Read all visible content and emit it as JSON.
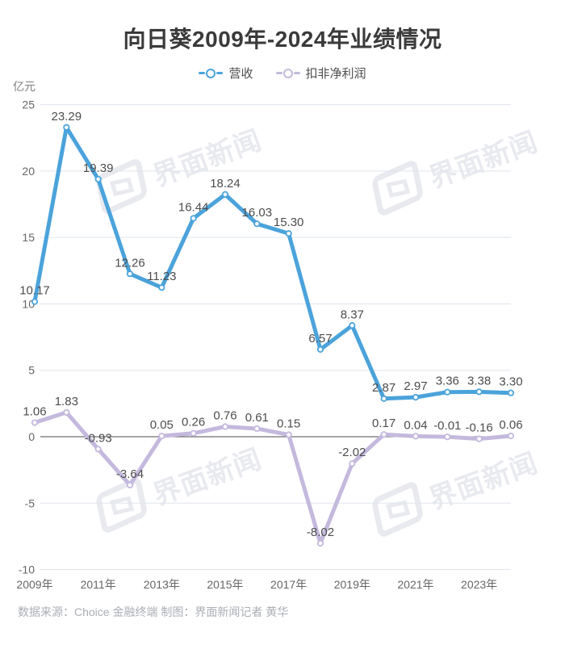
{
  "page": {
    "title": "向日葵2009年-2024年业绩情况",
    "source_note": "数据来源：Choice 金融终端 制图：界面新闻记者 黄华",
    "watermark": "界面新闻"
  },
  "chart_data": {
    "type": "line",
    "title": "向日葵2009年-2024年业绩情况",
    "unit_label": "亿元",
    "legend_position": "top",
    "grid": true,
    "categories": [
      "2009年",
      "2010年",
      "2011年",
      "2012年",
      "2013年",
      "2014年",
      "2015年",
      "2016年",
      "2017年",
      "2018年",
      "2019年",
      "2020年",
      "2021年",
      "2022年",
      "2023年",
      "2024年"
    ],
    "x_tick_labels": [
      "2009年",
      "2011年",
      "2013年",
      "2015年",
      "2017年",
      "2019年",
      "2021年",
      "2023年"
    ],
    "ylim": [
      -10,
      25
    ],
    "y_ticks": [
      25,
      20,
      15,
      10,
      5,
      0,
      -5,
      -10
    ],
    "series": [
      {
        "name": "营收",
        "color": "#4BA3DB",
        "values": [
          10.17,
          23.29,
          19.39,
          12.26,
          11.23,
          16.44,
          18.24,
          16.03,
          15.3,
          6.57,
          8.37,
          2.87,
          2.97,
          3.36,
          3.38,
          3.3
        ]
      },
      {
        "name": "扣非净利润",
        "color": "#C4B9DD",
        "values": [
          1.06,
          1.83,
          -0.93,
          -3.64,
          0.05,
          0.26,
          0.76,
          0.61,
          0.15,
          -8.02,
          -2.02,
          0.17,
          0.04,
          -0.01,
          -0.16,
          0.06
        ]
      }
    ]
  },
  "colors": {
    "title": "#3A3A3A",
    "grid_line": "#DFE5ED",
    "zero_line": "#4D4D4D",
    "tick_label": "#666666",
    "data_label": "#4D4D4D",
    "unit_label": "#808080",
    "legend_label": "#4D4D4D",
    "footer": "#ABAEB5",
    "watermark": "#E9EAEF",
    "background": "#FFFFFF"
  }
}
